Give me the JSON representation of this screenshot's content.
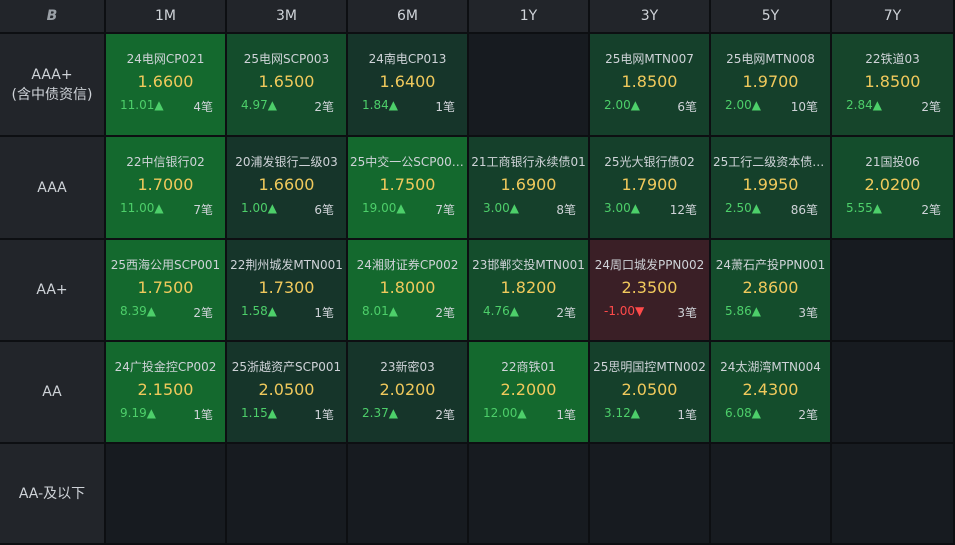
{
  "corner_icon": "logo-b-icon",
  "corner_symbol": "B",
  "columns": [
    "1M",
    "3M",
    "6M",
    "1Y",
    "3Y",
    "5Y",
    "7Y"
  ],
  "rows": [
    {
      "label_line1": "AAA+",
      "label_line2": "(含中债资信)",
      "cells": [
        {
          "name": "24电网CP021",
          "yield": "1.6600",
          "change": "11.01▲",
          "count": "4笔",
          "bg": "#14692e"
        },
        {
          "name": "25电网SCP003",
          "yield": "1.6500",
          "change": "4.97▲",
          "count": "2笔",
          "bg": "#144d2c"
        },
        {
          "name": "24南电CP013",
          "yield": "1.6400",
          "change": "1.84▲",
          "count": "1笔",
          "bg": "#16352a"
        },
        null,
        {
          "name": "25电网MTN007",
          "yield": "1.8500",
          "change": "2.00▲",
          "count": "6笔",
          "bg": "#15402b"
        },
        {
          "name": "25电网MTN008",
          "yield": "1.9700",
          "change": "2.00▲",
          "count": "10笔",
          "bg": "#15402b"
        },
        {
          "name": "22铁道03",
          "yield": "1.8500",
          "change": "2.84▲",
          "count": "2笔",
          "bg": "#16452b"
        }
      ]
    },
    {
      "label_line1": "AAA",
      "label_line2": "",
      "cells": [
        {
          "name": "22中信银行02",
          "yield": "1.7000",
          "change": "11.00▲",
          "count": "7笔",
          "bg": "#14692e"
        },
        {
          "name": "20浦发银行二级03",
          "yield": "1.6600",
          "change": "1.00▲",
          "count": "6笔",
          "bg": "#16352a"
        },
        {
          "name": "25中交一公SCP006...",
          "yield": "1.7500",
          "change": "19.00▲",
          "count": "7笔",
          "bg": "#14692e"
        },
        {
          "name": "21工商银行永续债01",
          "yield": "1.6900",
          "change": "3.00▲",
          "count": "8笔",
          "bg": "#15402b"
        },
        {
          "name": "25光大银行债02",
          "yield": "1.7900",
          "change": "3.00▲",
          "count": "12笔",
          "bg": "#15402b"
        },
        {
          "name": "25工行二级资本债0...",
          "yield": "1.9950",
          "change": "2.50▲",
          "count": "86笔",
          "bg": "#15402b"
        },
        {
          "name": "21国投06",
          "yield": "2.0200",
          "change": "5.55▲",
          "count": "2笔",
          "bg": "#144d2c"
        }
      ]
    },
    {
      "label_line1": "AA+",
      "label_line2": "",
      "cells": [
        {
          "name": "25西海公用SCP001",
          "yield": "1.7500",
          "change": "8.39▲",
          "count": "2笔",
          "bg": "#14692e"
        },
        {
          "name": "22荆州城发MTN001",
          "yield": "1.7300",
          "change": "1.58▲",
          "count": "1笔",
          "bg": "#16352a"
        },
        {
          "name": "24湘财证券CP002",
          "yield": "1.8000",
          "change": "8.01▲",
          "count": "2笔",
          "bg": "#14692e"
        },
        {
          "name": "23邯郸交投MTN001",
          "yield": "1.8200",
          "change": "4.76▲",
          "count": "2笔",
          "bg": "#144d2c"
        },
        {
          "name": "24周口城发PPN002",
          "yield": "2.3500",
          "change": "-1.00▼",
          "count": "3笔",
          "bg": "#3a1f26",
          "down": true
        },
        {
          "name": "24萧石产投PPN001",
          "yield": "2.8600",
          "change": "5.86▲",
          "count": "3笔",
          "bg": "#144d2c"
        },
        null
      ]
    },
    {
      "label_line1": "AA",
      "label_line2": "",
      "cells": [
        {
          "name": "24广投金控CP002",
          "yield": "2.1500",
          "change": "9.19▲",
          "count": "1笔",
          "bg": "#14692e"
        },
        {
          "name": "25浙越资产SCP001",
          "yield": "2.0500",
          "change": "1.15▲",
          "count": "1笔",
          "bg": "#16352a"
        },
        {
          "name": "23新密03",
          "yield": "2.0200",
          "change": "2.37▲",
          "count": "2笔",
          "bg": "#16352a"
        },
        {
          "name": "22商铁01",
          "yield": "2.2000",
          "change": "12.00▲",
          "count": "1笔",
          "bg": "#14692e"
        },
        {
          "name": "25思明国控MTN002",
          "yield": "2.0500",
          "change": "3.12▲",
          "count": "1笔",
          "bg": "#15402b"
        },
        {
          "name": "24太湖湾MTN004",
          "yield": "2.4300",
          "change": "6.08▲",
          "count": "2笔",
          "bg": "#144d2c"
        },
        null
      ]
    },
    {
      "label_line1": "AA-及以下",
      "label_line2": "",
      "cells": [
        null,
        null,
        null,
        null,
        null,
        null,
        null
      ]
    }
  ],
  "colors": {
    "empty_cell": "#171b20",
    "header_bg": "#22252a",
    "yield_text": "#f0c95c",
    "up": "#4dcf6a",
    "down": "#ff4a4a"
  }
}
